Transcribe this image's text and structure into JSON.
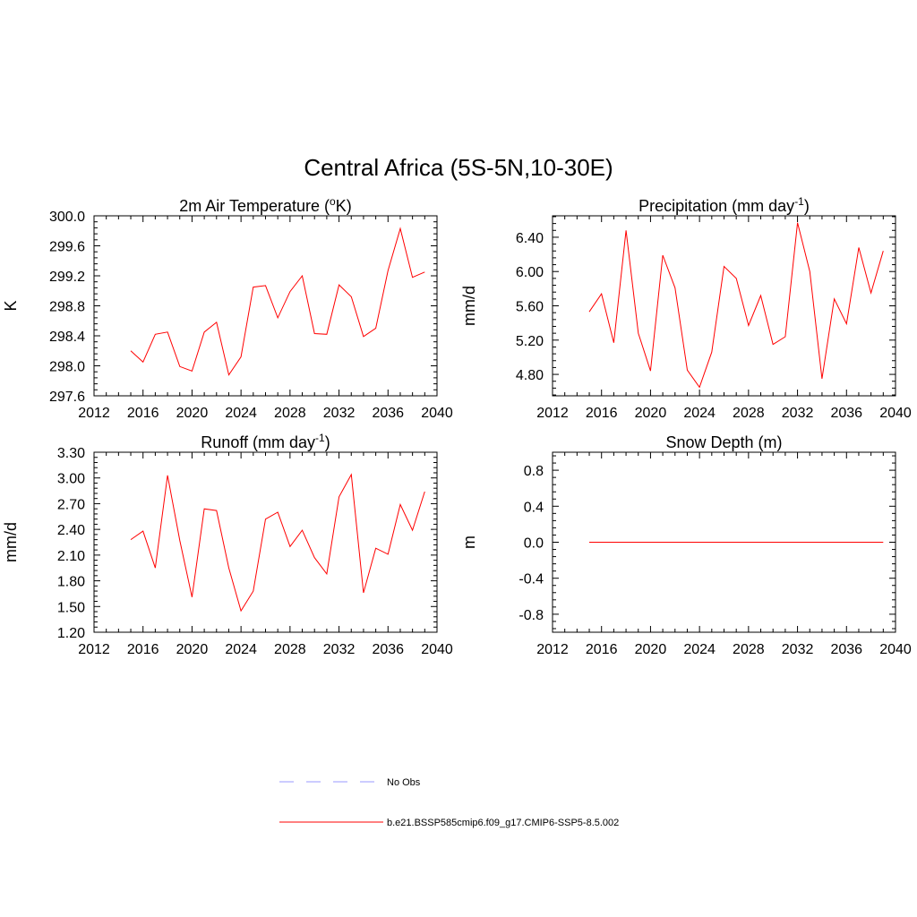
{
  "title": "Central Africa (5S-5N,10-30E)",
  "colors": {
    "model": "#ff0000",
    "obs": "#9999ff",
    "axis": "#000000"
  },
  "legend": {
    "entries": [
      {
        "label": "No Obs",
        "style": "dashed",
        "color": "#9999ff"
      },
      {
        "label": "b.e21.BSSP585cmip6.f09_g17.CMIP6-SSP5-8.5.002",
        "style": "solid",
        "color": "#ff0000"
      }
    ]
  },
  "chart_data": [
    {
      "type": "line",
      "title": "2m Air Temperature (",
      "title_sup": "o",
      "title_after": "K)",
      "ylabel": "K",
      "xlim": [
        2012,
        2040
      ],
      "xticks": [
        "2012",
        "2016",
        "2020",
        "2024",
        "2028",
        "2032",
        "2036",
        "2040"
      ],
      "ylim": [
        297.6,
        300.0
      ],
      "yticks": [
        "297.6",
        "298.0",
        "298.4",
        "298.8",
        "299.2",
        "299.6",
        "300.0"
      ],
      "x": [
        2015,
        2016,
        2017,
        2018,
        2019,
        2020,
        2021,
        2022,
        2023,
        2024,
        2025,
        2026,
        2027,
        2028,
        2029,
        2030,
        2031,
        2032,
        2033,
        2034,
        2035,
        2036,
        2037,
        2038,
        2039
      ],
      "series": [
        {
          "values": [
            298.2,
            298.05,
            298.42,
            298.45,
            297.99,
            297.93,
            298.45,
            298.58,
            297.88,
            298.12,
            299.05,
            299.07,
            298.64,
            298.99,
            299.2,
            298.43,
            298.42,
            299.08,
            298.92,
            298.39,
            298.5,
            299.27,
            299.83,
            299.18,
            299.25
          ]
        }
      ]
    },
    {
      "type": "line",
      "title": "Precipitation (mm day",
      "title_sup": "-1",
      "title_after": ")",
      "ylabel": "mm/d",
      "xlim": [
        2012,
        2040
      ],
      "xticks": [
        "2012",
        "2016",
        "2020",
        "2024",
        "2028",
        "2032",
        "2036",
        "2040"
      ],
      "ylim": [
        4.55,
        6.65
      ],
      "yticks": [
        "4.80",
        "5.20",
        "5.60",
        "6.00",
        "6.40"
      ],
      "x": [
        2015,
        2016,
        2017,
        2018,
        2019,
        2020,
        2021,
        2022,
        2023,
        2024,
        2025,
        2026,
        2027,
        2028,
        2029,
        2030,
        2031,
        2032,
        2033,
        2034,
        2035,
        2036,
        2037,
        2038,
        2039
      ],
      "series": [
        {
          "values": [
            5.53,
            5.74,
            5.17,
            6.48,
            5.28,
            4.84,
            6.19,
            5.81,
            4.85,
            4.65,
            5.06,
            6.06,
            5.92,
            5.37,
            5.72,
            5.15,
            5.24,
            6.57,
            6.0,
            4.75,
            5.68,
            5.39,
            6.28,
            5.75,
            6.24
          ]
        }
      ]
    },
    {
      "type": "line",
      "title": "Runoff (mm day",
      "title_sup": "-1",
      "title_after": ")",
      "ylabel": "mm/d",
      "xlim": [
        2012,
        2040
      ],
      "xticks": [
        "2012",
        "2016",
        "2020",
        "2024",
        "2028",
        "2032",
        "2036",
        "2040"
      ],
      "ylim": [
        1.2,
        3.3
      ],
      "yticks": [
        "1.20",
        "1.50",
        "1.80",
        "2.10",
        "2.40",
        "2.70",
        "3.00",
        "3.30"
      ],
      "x": [
        2015,
        2016,
        2017,
        2018,
        2019,
        2020,
        2021,
        2022,
        2023,
        2024,
        2025,
        2026,
        2027,
        2028,
        2029,
        2030,
        2031,
        2032,
        2033,
        2034,
        2035,
        2036,
        2037,
        2038,
        2039
      ],
      "series": [
        {
          "values": [
            2.28,
            2.38,
            1.95,
            3.03,
            2.27,
            1.61,
            2.64,
            2.62,
            1.95,
            1.45,
            1.68,
            2.52,
            2.6,
            2.2,
            2.39,
            2.07,
            1.88,
            2.78,
            3.04,
            1.66,
            2.18,
            2.11,
            2.69,
            2.39,
            2.84
          ]
        }
      ]
    },
    {
      "type": "line",
      "title": "Snow Depth (m)",
      "title_sup": "",
      "title_after": "",
      "ylabel": "m",
      "xlim": [
        2012,
        2040
      ],
      "xticks": [
        "2012",
        "2016",
        "2020",
        "2024",
        "2028",
        "2032",
        "2036",
        "2040"
      ],
      "ylim": [
        -1.0,
        1.0
      ],
      "yticks": [
        "-0.8",
        "-0.4",
        "0.0",
        "0.4",
        "0.8"
      ],
      "x": [
        2015,
        2039
      ],
      "series": [
        {
          "values": [
            0.0,
            0.0
          ]
        }
      ]
    }
  ]
}
